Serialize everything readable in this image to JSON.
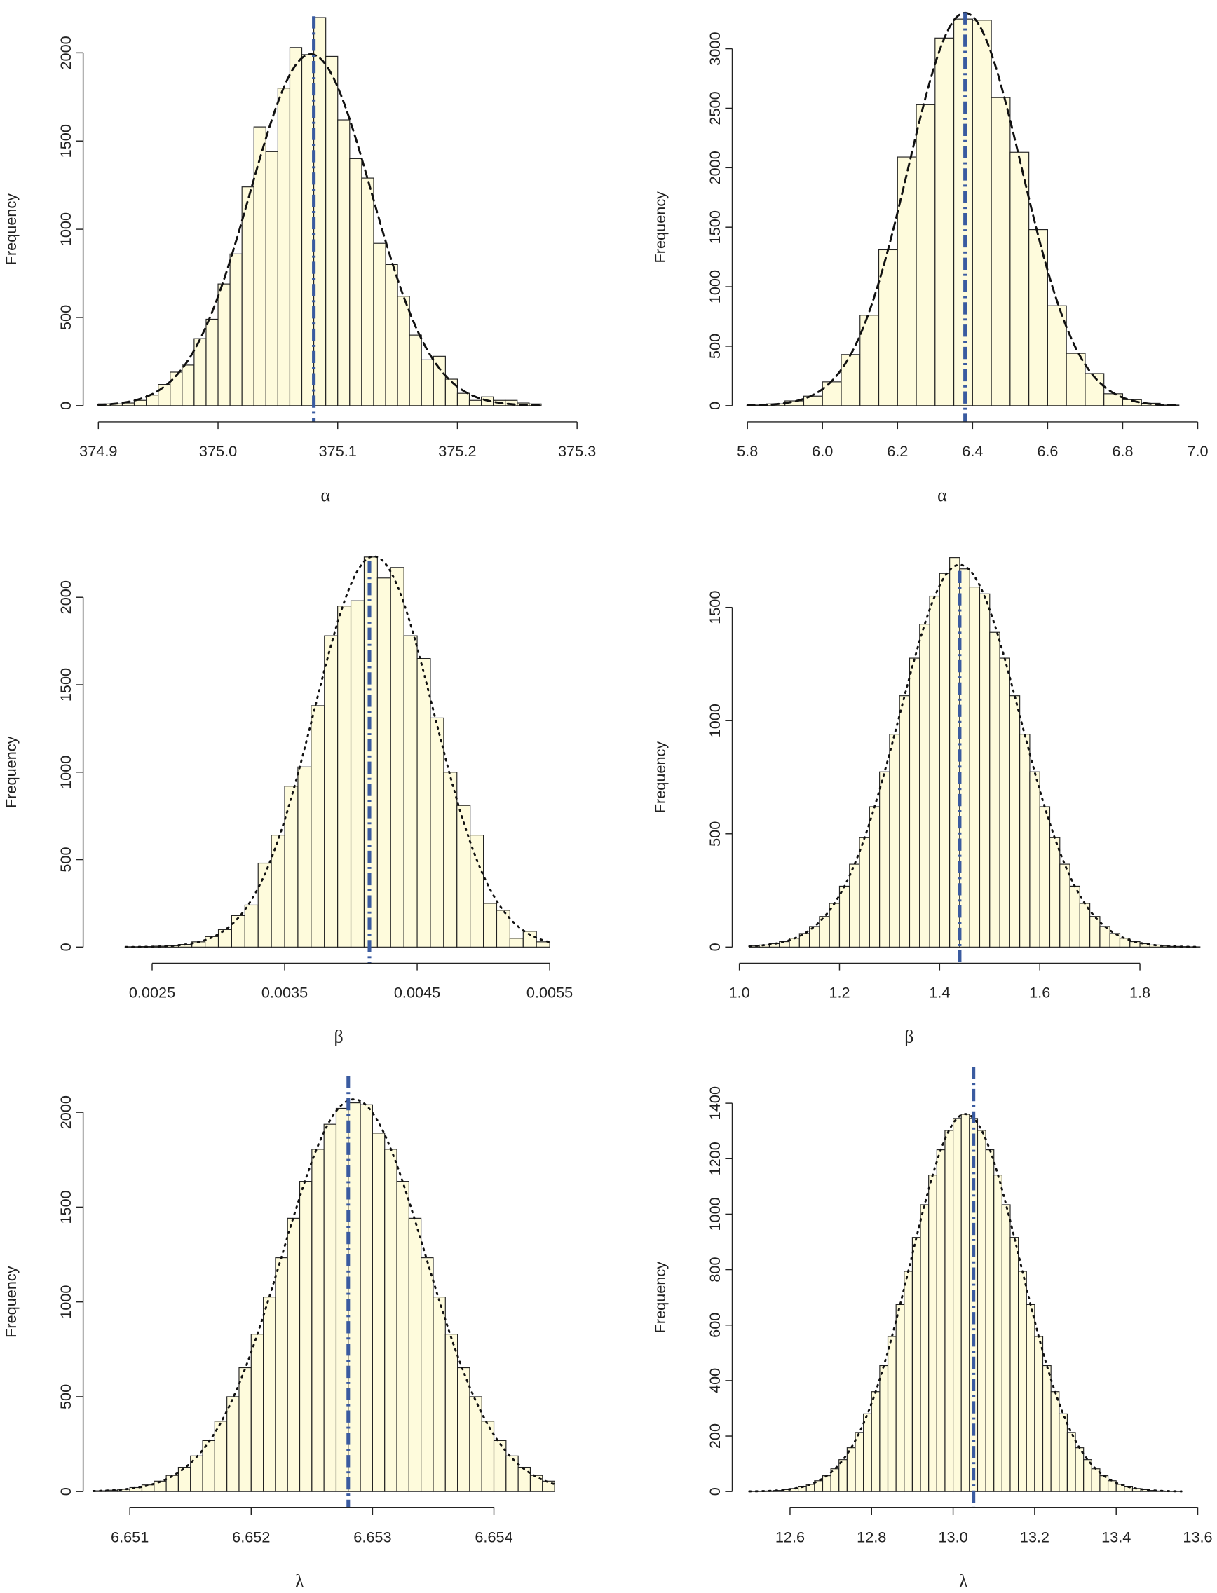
{
  "chart_data": [
    {
      "type": "histogram",
      "ylabel": "Frequency",
      "xlabel": "α",
      "color": "#fefbdc",
      "curve": "dashed",
      "ref_line": {
        "value": 375.08,
        "color": "#3a5ba0"
      },
      "bins": [
        374.9,
        374.91,
        374.92,
        374.93,
        374.94,
        374.95,
        374.96,
        374.97,
        374.98,
        374.99,
        375,
        375.01,
        375.02,
        375.03,
        375.04,
        375.05,
        375.06,
        375.07,
        375.08,
        375.09,
        375.1,
        375.11,
        375.12,
        375.13,
        375.14,
        375.15,
        375.16,
        375.17,
        375.18,
        375.19,
        375.2,
        375.21,
        375.22,
        375.23,
        375.24,
        375.25,
        375.26,
        375.27
      ],
      "counts": [
        10,
        10,
        15,
        30,
        60,
        120,
        190,
        230,
        380,
        490,
        690,
        860,
        1240,
        1580,
        1440,
        1800,
        2030,
        1990,
        2200,
        1980,
        1620,
        1400,
        1290,
        920,
        800,
        620,
        400,
        260,
        280,
        150,
        70,
        30,
        50,
        30,
        30,
        15,
        10
      ],
      "xlim": [
        374.9,
        375.3
      ],
      "xticks": [
        374.9,
        {
          "value": 375,
          "label": "375.0"
        },
        375.1,
        375.2,
        375.3
      ],
      "ylim": [
        0,
        2000
      ],
      "yticks": [
        0,
        500,
        1000,
        1500,
        2000
      ]
    },
    {
      "type": "histogram",
      "ylabel": "Frequency",
      "xlabel": "α",
      "color": "#fefbdc",
      "curve": "dashed",
      "ref_line": {
        "value": 6.38,
        "color": "#3a5ba0"
      },
      "bins": [
        5.8,
        5.85,
        5.9,
        5.95,
        6,
        6.05,
        6.1,
        6.15,
        6.2,
        6.25,
        6.3,
        6.35,
        6.4,
        6.45,
        6.5,
        6.55,
        6.6,
        6.65,
        6.7,
        6.75,
        6.8,
        6.85,
        6.9,
        6.95
      ],
      "counts": [
        5,
        15,
        40,
        80,
        200,
        430,
        760,
        1310,
        2090,
        2530,
        3090,
        3250,
        3240,
        2590,
        2130,
        1480,
        840,
        440,
        270,
        100,
        50,
        20,
        5
      ],
      "xlim": [
        5.8,
        7.0
      ],
      "xticks": [
        5.8,
        {
          "value": 6,
          "label": "6.0"
        },
        6.2,
        6.4,
        6.6,
        6.8,
        {
          "value": 7,
          "label": "7.0"
        }
      ],
      "ylim": [
        0,
        3000
      ],
      "yticks": [
        0,
        500,
        1000,
        1500,
        2000,
        2500,
        3000
      ]
    },
    {
      "type": "histogram",
      "ylabel": "Frequency",
      "xlabel": "β",
      "color": "#fefbdc",
      "curve": "dotted",
      "ref_line": {
        "value": 0.00414,
        "color": "#3a5ba0"
      },
      "bins": [
        0.0023,
        0.0024,
        0.0025,
        0.0026,
        0.0027,
        0.0028,
        0.0029,
        0.003,
        0.0031,
        0.0032,
        0.0033,
        0.0034,
        0.0035,
        0.0036,
        0.0037,
        0.0038,
        0.0039,
        0.004,
        0.0041,
        0.0042,
        0.0043,
        0.0044,
        0.0045,
        0.0046,
        0.0047,
        0.0048,
        0.0049,
        0.005,
        0.0051,
        0.0052,
        0.0053,
        0.0054,
        0.0055
      ],
      "counts": [
        2,
        3,
        5,
        8,
        15,
        30,
        60,
        100,
        180,
        240,
        480,
        640,
        920,
        1030,
        1380,
        1780,
        1950,
        1980,
        2230,
        2110,
        2170,
        1780,
        1650,
        1310,
        1000,
        810,
        640,
        250,
        210,
        50,
        90,
        30
      ],
      "xlim": [
        0.0025,
        0.0055
      ],
      "xticks": [
        0.0025,
        0.0035,
        0.0045,
        0.0055
      ],
      "ylim": [
        0,
        2000
      ],
      "yticks": [
        0,
        500,
        1000,
        1500,
        2000
      ]
    },
    {
      "type": "histogram",
      "ylabel": "Frequency",
      "xlabel": "β",
      "color": "#fefbdc",
      "curve": "dotted",
      "ref_line": {
        "value": 1.44,
        "color": "#3a5ba0"
      },
      "bins": [
        1.02,
        1.04,
        1.06,
        1.08,
        1.1,
        1.12,
        1.14,
        1.16,
        1.18,
        1.2,
        1.22,
        1.24,
        1.26,
        1.28,
        1.3,
        1.32,
        1.34,
        1.36,
        1.38,
        1.4,
        1.42,
        1.44,
        1.46,
        1.48,
        1.5,
        1.52,
        1.54,
        1.56,
        1.58,
        1.6,
        1.62,
        1.64,
        1.66,
        1.68,
        1.7,
        1.72,
        1.74,
        1.76,
        1.78,
        1.8,
        1.82,
        1.84,
        1.86,
        1.88,
        1.9,
        1.92
      ],
      "counts": [
        5,
        9,
        15,
        24,
        39,
        60,
        91,
        135,
        193,
        269,
        366,
        483,
        620,
        774,
        940,
        1110,
        1276,
        1426,
        1550,
        1650,
        1720,
        1670,
        1590,
        1560,
        1390,
        1276,
        1110,
        940,
        774,
        620,
        483,
        366,
        269,
        193,
        135,
        91,
        60,
        39,
        24,
        15,
        9,
        5,
        3,
        2,
        1
      ],
      "xlim": [
        1.0,
        1.8
      ],
      "xticks": [
        {
          "value": 1,
          "label": "1.0"
        },
        1.2,
        1.4,
        1.6,
        1.8
      ],
      "ylim": [
        0,
        1500
      ],
      "yticks": [
        0,
        500,
        1000,
        1500
      ]
    },
    {
      "type": "histogram",
      "ylabel": "Frequency",
      "xlabel": "λ",
      "color": "#fefbdc",
      "curve": "dotted",
      "ref_line": {
        "value": 6.6528,
        "color": "#3a5ba0"
      },
      "bins": [
        6.6507,
        6.6508,
        6.6509,
        6.651,
        6.6511,
        6.6512,
        6.6513,
        6.6514,
        6.6515,
        6.6516,
        6.6517,
        6.6518,
        6.6519,
        6.652,
        6.6521,
        6.6522,
        6.6523,
        6.6524,
        6.6525,
        6.6526,
        6.6527,
        6.6528,
        6.6529,
        6.653,
        6.6531,
        6.6532,
        6.6533,
        6.6534,
        6.6535,
        6.6536,
        6.6537,
        6.6538,
        6.6539,
        6.654,
        6.6541,
        6.6542,
        6.6543,
        6.6544,
        6.6545
      ],
      "counts": [
        4,
        7,
        12,
        21,
        35,
        55,
        85,
        128,
        188,
        269,
        371,
        500,
        653,
        830,
        1026,
        1233,
        1441,
        1636,
        1805,
        1937,
        2021,
        2050,
        2040,
        1890,
        1805,
        1636,
        1441,
        1233,
        1026,
        830,
        653,
        500,
        371,
        269,
        188,
        128,
        85,
        55
      ],
      "xlim": [
        6.651,
        6.654
      ],
      "xticks": [
        6.651,
        6.652,
        6.653,
        6.654
      ],
      "ylim": [
        0,
        2000
      ],
      "yticks": [
        0,
        500,
        1000,
        1500,
        2000
      ]
    },
    {
      "type": "histogram",
      "ylabel": "Frequency",
      "xlabel": "λ",
      "color": "#fefbdc",
      "curve": "dotted",
      "ref_line": {
        "value": 13.05,
        "color": "#3a5ba0"
      },
      "bins": [
        12.5,
        12.52,
        12.54,
        12.56,
        12.58,
        12.6,
        12.62,
        12.64,
        12.66,
        12.68,
        12.7,
        12.72,
        12.74,
        12.76,
        12.78,
        12.8,
        12.82,
        12.84,
        12.86,
        12.88,
        12.9,
        12.92,
        12.94,
        12.96,
        12.98,
        13,
        13.02,
        13.04,
        13.06,
        13.08,
        13.1,
        13.12,
        13.14,
        13.16,
        13.18,
        13.2,
        13.22,
        13.24,
        13.26,
        13.28,
        13.3,
        13.32,
        13.34,
        13.36,
        13.38,
        13.4,
        13.42,
        13.44,
        13.46,
        13.48,
        13.5,
        13.52,
        13.54,
        13.56
      ],
      "counts": [
        1,
        1,
        2,
        4,
        7,
        11,
        17,
        26,
        39,
        57,
        82,
        115,
        158,
        213,
        280,
        360,
        454,
        559,
        674,
        794,
        916,
        1034,
        1141,
        1232,
        1302,
        1345,
        1360,
        1345,
        1302,
        1232,
        1141,
        1034,
        916,
        794,
        674,
        559,
        454,
        360,
        280,
        213,
        158,
        115,
        82,
        57,
        39,
        26,
        17,
        11,
        7,
        4,
        2,
        1,
        1
      ],
      "xlim": [
        12.6,
        13.6
      ],
      "xticks": [
        12.6,
        12.8,
        {
          "value": 13,
          "label": "13.0"
        },
        13.2,
        13.4,
        13.6
      ],
      "ylim": [
        0,
        1400
      ],
      "yticks": [
        0,
        200,
        400,
        600,
        800,
        1000,
        1200,
        1400
      ]
    }
  ]
}
